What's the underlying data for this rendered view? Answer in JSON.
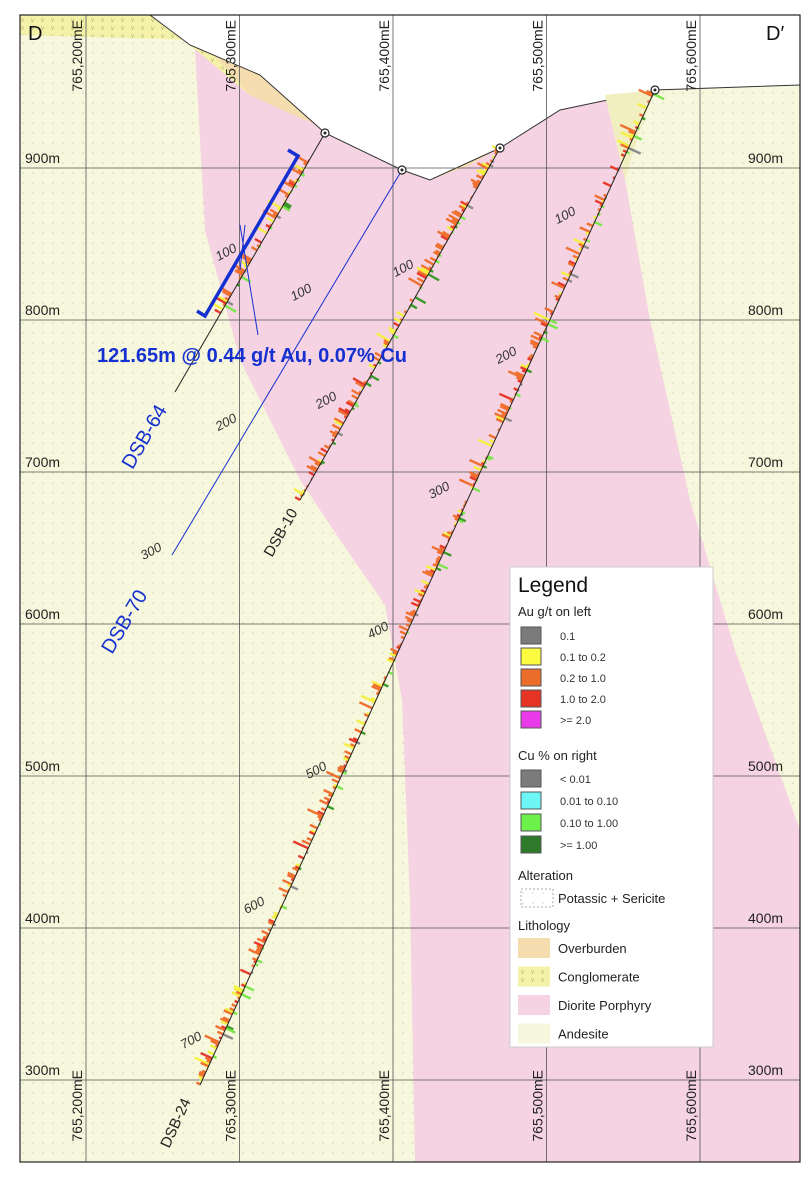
{
  "section": {
    "left": "D",
    "right": "D′"
  },
  "eastings": [
    "765,200mE",
    "765,300mE",
    "765,400mE",
    "765,500mE",
    "765,600mE"
  ],
  "elevations": [
    "900m",
    "800m",
    "700m",
    "600m",
    "500m",
    "400m",
    "300m"
  ],
  "holes": [
    {
      "name": "DSB-64",
      "depths": [
        "100"
      ]
    },
    {
      "name": "DSB-70",
      "depths": [
        "100",
        "200",
        "300"
      ]
    },
    {
      "name": "DSB-10",
      "depths": [
        "100",
        "200"
      ]
    },
    {
      "name": "DSB-24",
      "depths": [
        "100",
        "200",
        "300",
        "400",
        "500",
        "600",
        "700"
      ]
    }
  ],
  "callout": "121.65m @ 0.44 g/t Au, 0.07% Cu",
  "legend": {
    "title": "Legend",
    "au_header": "Au g/t on left",
    "au_items": [
      "0.1",
      "0.1 to 0.2",
      "0.2 to 1.0",
      "1.0 to 2.0",
      ">= 2.0"
    ],
    "cu_header": "Cu % on right",
    "cu_items": [
      "< 0.01",
      "0.01 to 0.10",
      "0.10 to 1.00",
      ">= 1.00"
    ],
    "alteration_header": "Alteration",
    "alteration_items": [
      "Potassic + Sericite"
    ],
    "lithology_header": "Lithology",
    "lithology_items": [
      "Overburden",
      "Conglomerate",
      "Diorite Porphyry",
      "Andesite"
    ]
  }
}
